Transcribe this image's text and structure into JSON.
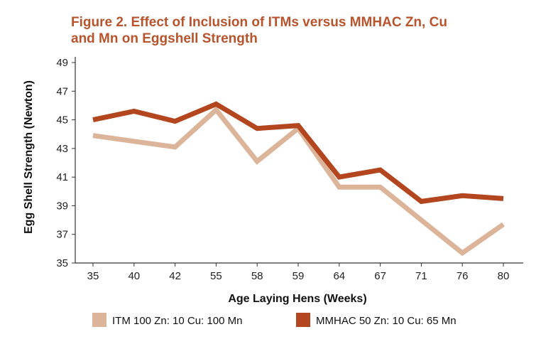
{
  "chart_data": {
    "type": "line",
    "title_lines": [
      "Figure 2. Effect of Inclusion of ITMs versus MMHAC Zn, Cu",
      "and Mn on Eggshell Strength"
    ],
    "xlabel": "Age Laying Hens (Weeks)",
    "ylabel": "Egg Shell Strength (Newton)",
    "categories": [
      "35",
      "40",
      "42",
      "55",
      "58",
      "59",
      "64",
      "67",
      "71",
      "76",
      "80"
    ],
    "ylim": [
      35,
      49
    ],
    "yticks": [
      35,
      37,
      39,
      41,
      43,
      45,
      47,
      49
    ],
    "grid": false,
    "legend_position": "bottom",
    "series": [
      {
        "name": "ITM 100 Zn: 10 Cu: 100 Mn",
        "color": "#dcb49a",
        "values": [
          43.9,
          43.5,
          43.1,
          45.7,
          42.1,
          44.4,
          40.3,
          40.3,
          38.0,
          35.7,
          37.7
        ]
      },
      {
        "name": "MMHAC 50 Zn: 10 Cu: 65 Mn",
        "color": "#b3451f",
        "values": [
          45.0,
          45.6,
          44.9,
          46.1,
          44.4,
          44.6,
          41.0,
          41.5,
          39.3,
          39.7,
          39.5
        ]
      }
    ]
  }
}
